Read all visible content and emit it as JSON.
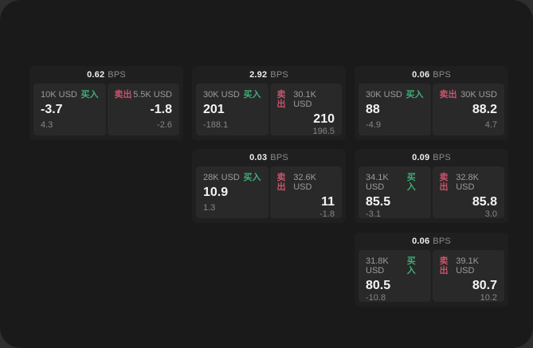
{
  "labels": {
    "bps_unit": "BPS",
    "buy": "买入",
    "sell": "卖出"
  },
  "colors": {
    "backdrop": "#2e2e2e",
    "window_bg": "#1a1a1a",
    "card_bg": "#1f1f1f",
    "panel_bg": "#292929",
    "buy_green": "#3fae74",
    "sell_red": "#c9536b",
    "text_primary": "#f4f4f4",
    "text_muted": "#9c9c9c"
  },
  "cards": [
    {
      "bps": "0.62",
      "buy": {
        "size": "10K USD",
        "price": "-3.7",
        "delta": "4.3"
      },
      "sell": {
        "size": "5.5K USD",
        "price": "-1.8",
        "delta": "-2.6"
      }
    },
    {
      "bps": "2.92",
      "buy": {
        "size": "30K USD",
        "price": "201",
        "delta": "-188.1"
      },
      "sell": {
        "size": "30.1K USD",
        "price": "210",
        "delta": "196.5"
      }
    },
    {
      "bps": "0.06",
      "buy": {
        "size": "30K USD",
        "price": "88",
        "delta": "-4.9"
      },
      "sell": {
        "size": "30K USD",
        "price": "88.2",
        "delta": "4.7"
      }
    },
    {
      "bps": "0.03",
      "buy": {
        "size": "28K USD",
        "price": "10.9",
        "delta": "1.3"
      },
      "sell": {
        "size": "32.6K USD",
        "price": "11",
        "delta": "-1.8"
      }
    },
    {
      "bps": "0.09",
      "buy": {
        "size": "34.1K USD",
        "price": "85.5",
        "delta": "-3.1"
      },
      "sell": {
        "size": "32.8K USD",
        "price": "85.8",
        "delta": "3.0"
      }
    },
    {
      "bps": "0.06",
      "buy": {
        "size": "31.8K USD",
        "price": "80.5",
        "delta": "-10.8"
      },
      "sell": {
        "size": "39.1K USD",
        "price": "80.7",
        "delta": "10.2"
      }
    }
  ]
}
